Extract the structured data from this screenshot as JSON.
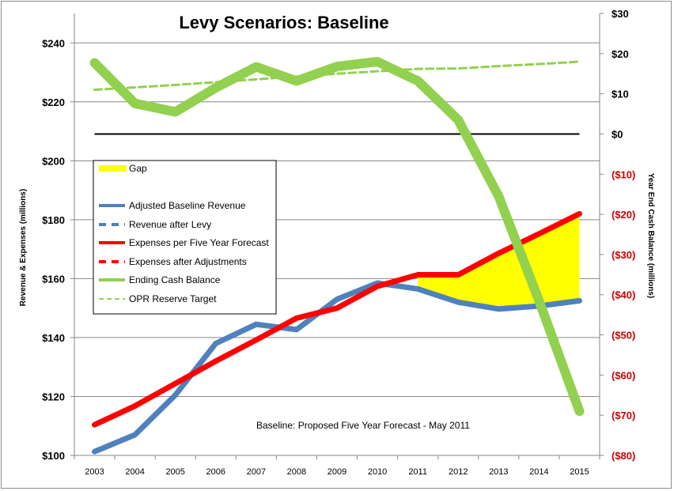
{
  "chart_data": {
    "type": "line",
    "title": "Levy Scenarios: Baseline",
    "annotation": "Baseline: Proposed Five Year Forecast  - May 2011",
    "xlabel": "",
    "ylabel_left": "Revenue & Expenses (millions)",
    "ylabel_right": "Year End Cash Balance (millions)",
    "categories": [
      "2003",
      "2004",
      "2005",
      "2006",
      "2007",
      "2008",
      "2009",
      "2010",
      "2011",
      "2012",
      "2013",
      "2014",
      "2015"
    ],
    "left_axis": {
      "ylim": [
        100,
        250
      ],
      "ticks": [
        100,
        120,
        140,
        160,
        180,
        200,
        220,
        240
      ],
      "tick_labels": [
        "$100",
        "$120",
        "$140",
        "$160",
        "$180",
        "$200",
        "$220",
        "$240"
      ]
    },
    "right_axis": {
      "ylim": [
        -80,
        30
      ],
      "ticks": [
        -80,
        -70,
        -60,
        -50,
        -40,
        -30,
        -20,
        -10,
        0,
        10,
        20,
        30
      ],
      "tick_labels": [
        "($80)",
        "($70)",
        "($60)",
        "($50)",
        "($40)",
        "($30)",
        "($20)",
        "($10)",
        "$0",
        "$10",
        "$20",
        "$30"
      ],
      "negative_color": "#cc0000",
      "positive_color": "#000000"
    },
    "grid": true,
    "legend_position": "left-middle",
    "series": [
      {
        "name": "Adjusted Baseline Revenue",
        "axis": "left",
        "color": "#4f81bd",
        "style": "solid",
        "values": [
          101.3,
          107.0,
          120.5,
          138.0,
          144.5,
          142.7,
          153.0,
          158.5,
          156.5,
          152.0,
          149.7,
          150.7,
          152.5
        ]
      },
      {
        "name": "Revenue after Levy",
        "axis": "left",
        "color": "#4f81bd",
        "style": "dashed",
        "values": []
      },
      {
        "name": "Expenses per Five Year Forecast",
        "axis": "left",
        "color": "#ff0000",
        "style": "solid",
        "values": [
          110.4,
          116.8,
          124.4,
          132.0,
          139.2,
          146.6,
          150.0,
          157.4,
          161.3,
          161.3,
          168.6,
          175.2,
          182.0
        ]
      },
      {
        "name": "Expenses after Adjustments",
        "axis": "left",
        "color": "#ff0000",
        "style": "dashed",
        "values": []
      },
      {
        "name": "Ending Cash Balance",
        "axis": "right",
        "color": "#92d050",
        "style": "solid",
        "values": [
          17.7,
          7.6,
          5.5,
          11.5,
          16.7,
          13.2,
          16.8,
          18.0,
          13.2,
          3.5,
          -15.5,
          -41.5,
          -69.0
        ]
      },
      {
        "name": "OPR Reserve Target",
        "axis": "right",
        "color": "#92d050",
        "style": "dashed",
        "values": [
          11.0,
          11.6,
          12.2,
          12.9,
          13.6,
          14.3,
          15.0,
          15.6,
          16.2,
          16.3,
          16.9,
          17.4,
          18.0
        ]
      }
    ],
    "gap_area": {
      "name": "Gap",
      "color": "#ffff00",
      "from_year": "2011",
      "to_year": "2015",
      "lower": "Adjusted Baseline Revenue",
      "upper": "Expenses per Five Year Forecast"
    },
    "zero_line": {
      "axis": "right",
      "value": 0,
      "color": "#000000"
    },
    "legend": [
      {
        "label": "Gap",
        "color": "#ffff00",
        "kind": "swatch"
      },
      {
        "label": "",
        "color": "",
        "kind": "blank"
      },
      {
        "label": "Adjusted Baseline Revenue",
        "color": "#4f81bd",
        "kind": "solid"
      },
      {
        "label": "Revenue after Levy",
        "color": "#4f81bd",
        "kind": "dashed"
      },
      {
        "label": "Expenses per Five Year Forecast",
        "color": "#ff0000",
        "kind": "solid"
      },
      {
        "label": "Expenses after Adjustments",
        "color": "#ff0000",
        "kind": "dashed"
      },
      {
        "label": "Ending Cash Balance",
        "color": "#92d050",
        "kind": "solid"
      },
      {
        "label": "OPR Reserve Target",
        "color": "#92d050",
        "kind": "dashed-thin"
      }
    ]
  }
}
